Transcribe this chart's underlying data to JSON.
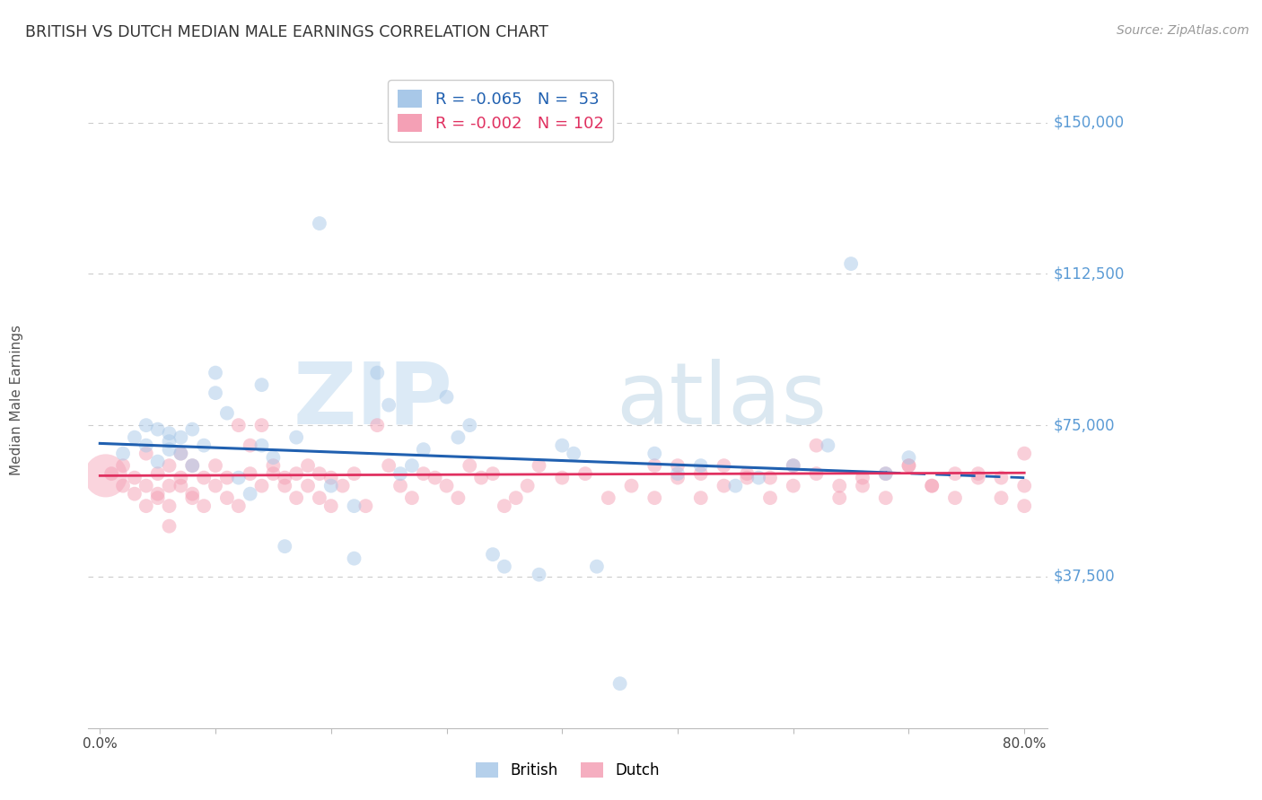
{
  "title": "BRITISH VS DUTCH MEDIAN MALE EARNINGS CORRELATION CHART",
  "source": "Source: ZipAtlas.com",
  "ylabel": "Median Male Earnings",
  "ylim": [
    0,
    162500
  ],
  "xlim": [
    -0.01,
    0.82
  ],
  "background_color": "#ffffff",
  "grid_color": "#cccccc",
  "title_color": "#333333",
  "ytick_color": "#5b9bd5",
  "british_color": "#a8c8e8",
  "dutch_color": "#f4a0b5",
  "british_line_color": "#2060b0",
  "dutch_line_color": "#e03060",
  "british_R": "-0.065",
  "british_N": "53",
  "dutch_R": "-0.002",
  "dutch_N": "102",
  "british_scatter_x": [
    0.02,
    0.03,
    0.04,
    0.04,
    0.05,
    0.05,
    0.06,
    0.06,
    0.06,
    0.07,
    0.07,
    0.08,
    0.08,
    0.09,
    0.1,
    0.1,
    0.11,
    0.12,
    0.13,
    0.14,
    0.14,
    0.15,
    0.16,
    0.17,
    0.19,
    0.2,
    0.22,
    0.22,
    0.24,
    0.25,
    0.26,
    0.27,
    0.28,
    0.3,
    0.31,
    0.32,
    0.34,
    0.35,
    0.38,
    0.4,
    0.41,
    0.43,
    0.45,
    0.48,
    0.5,
    0.52,
    0.55,
    0.57,
    0.6,
    0.63,
    0.65,
    0.68,
    0.7
  ],
  "british_scatter_y": [
    68000,
    72000,
    75000,
    70000,
    74000,
    66000,
    73000,
    69000,
    71000,
    72000,
    68000,
    74000,
    65000,
    70000,
    88000,
    83000,
    78000,
    62000,
    58000,
    70000,
    85000,
    67000,
    45000,
    72000,
    125000,
    60000,
    55000,
    42000,
    88000,
    80000,
    63000,
    65000,
    69000,
    82000,
    72000,
    75000,
    43000,
    40000,
    38000,
    70000,
    68000,
    40000,
    11000,
    68000,
    63000,
    65000,
    60000,
    62000,
    65000,
    70000,
    115000,
    63000,
    67000
  ],
  "dutch_scatter_x": [
    0.01,
    0.02,
    0.02,
    0.03,
    0.03,
    0.04,
    0.04,
    0.04,
    0.05,
    0.05,
    0.05,
    0.06,
    0.06,
    0.06,
    0.06,
    0.07,
    0.07,
    0.07,
    0.08,
    0.08,
    0.08,
    0.09,
    0.09,
    0.1,
    0.1,
    0.11,
    0.11,
    0.12,
    0.12,
    0.13,
    0.13,
    0.14,
    0.14,
    0.15,
    0.15,
    0.16,
    0.16,
    0.17,
    0.17,
    0.18,
    0.18,
    0.19,
    0.19,
    0.2,
    0.2,
    0.21,
    0.22,
    0.23,
    0.24,
    0.25,
    0.26,
    0.27,
    0.28,
    0.29,
    0.3,
    0.31,
    0.32,
    0.33,
    0.34,
    0.35,
    0.36,
    0.37,
    0.38,
    0.4,
    0.42,
    0.44,
    0.46,
    0.48,
    0.5,
    0.52,
    0.54,
    0.56,
    0.58,
    0.6,
    0.62,
    0.64,
    0.66,
    0.68,
    0.7,
    0.72,
    0.74,
    0.76,
    0.78,
    0.8,
    0.8,
    0.8,
    0.78,
    0.76,
    0.74,
    0.72,
    0.7,
    0.68,
    0.66,
    0.64,
    0.62,
    0.6,
    0.58,
    0.56,
    0.54,
    0.52,
    0.5,
    0.48
  ],
  "dutch_scatter_y": [
    63000,
    65000,
    60000,
    58000,
    62000,
    55000,
    68000,
    60000,
    57000,
    63000,
    58000,
    55000,
    50000,
    60000,
    65000,
    62000,
    68000,
    60000,
    57000,
    65000,
    58000,
    55000,
    62000,
    60000,
    65000,
    57000,
    62000,
    55000,
    75000,
    70000,
    63000,
    60000,
    75000,
    65000,
    63000,
    60000,
    62000,
    57000,
    63000,
    65000,
    60000,
    57000,
    63000,
    55000,
    62000,
    60000,
    63000,
    55000,
    75000,
    65000,
    60000,
    57000,
    63000,
    62000,
    60000,
    57000,
    65000,
    62000,
    63000,
    55000,
    57000,
    60000,
    65000,
    62000,
    63000,
    57000,
    60000,
    65000,
    62000,
    57000,
    65000,
    63000,
    62000,
    60000,
    70000,
    57000,
    60000,
    63000,
    65000,
    60000,
    57000,
    63000,
    62000,
    60000,
    55000,
    68000,
    57000,
    62000,
    63000,
    60000,
    65000,
    57000,
    62000,
    60000,
    63000,
    65000,
    57000,
    62000,
    60000,
    63000,
    65000,
    57000
  ],
  "marker_size": 130,
  "alpha_british": 0.5,
  "alpha_dutch": 0.5,
  "ytick_values": [
    37500,
    75000,
    112500,
    150000
  ],
  "ytick_labels_right": [
    "$37,500",
    "$75,000",
    "$112,500",
    "$150,000"
  ],
  "british_trend_x0": 0.0,
  "british_trend_y0": 70500,
  "british_trend_x1": 0.8,
  "british_trend_y1": 62000,
  "dutch_trend_x0": 0.0,
  "dutch_trend_y0": 62500,
  "dutch_trend_x1": 0.8,
  "dutch_trend_y1": 63200
}
